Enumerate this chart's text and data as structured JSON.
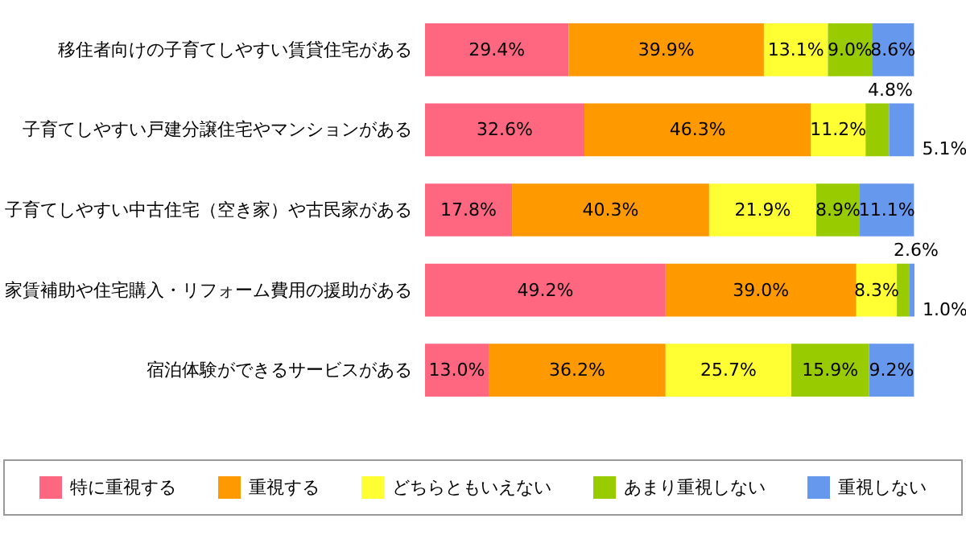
{
  "chart_data": {
    "type": "bar",
    "orientation": "horizontal",
    "stacked": true,
    "legend": "bottom",
    "categories": [
      "移住者向けの子育てしやすい賃貸住宅がある",
      "子育てしやすい戸建分譲住宅やマンションがある",
      "子育てしやすい中古住宅（空き家）や古民家がある",
      "家賃補助や住宅購入・リフォーム費用の援助がある",
      "宿泊体験ができるサービスがある"
    ],
    "series": [
      {
        "name": "特に重視する",
        "color": "#ff6680",
        "values": [
          29.4,
          32.6,
          17.8,
          49.2,
          13.0
        ],
        "value_labels": [
          "29.4%",
          "32.6%",
          "17.8%",
          "49.2%",
          "13.0%"
        ]
      },
      {
        "name": "重視する",
        "color": "#ff9900",
        "values": [
          39.9,
          46.3,
          40.3,
          39.0,
          36.2
        ],
        "value_labels": [
          "39.9%",
          "46.3%",
          "40.3%",
          "39.0%",
          "36.2%"
        ]
      },
      {
        "name": "どちらともいえない",
        "color": "#ffff33",
        "values": [
          13.1,
          11.2,
          21.9,
          8.3,
          25.7
        ],
        "value_labels": [
          "13.1%",
          "11.2%",
          "21.9%",
          "8.3%",
          "25.7%"
        ]
      },
      {
        "name": "あまり重視しない",
        "color": "#99cc00",
        "values": [
          9.0,
          4.8,
          8.9,
          2.6,
          15.9
        ],
        "value_labels": [
          "9.0%",
          "4.8%",
          "8.9%",
          "2.6%",
          "15.9%"
        ]
      },
      {
        "name": "重視しない",
        "color": "#6699ee",
        "values": [
          8.6,
          5.1,
          11.1,
          1.0,
          9.2
        ],
        "value_labels": [
          "8.6%",
          "5.1%",
          "11.1%",
          "1.0%",
          "9.2%"
        ]
      }
    ]
  }
}
